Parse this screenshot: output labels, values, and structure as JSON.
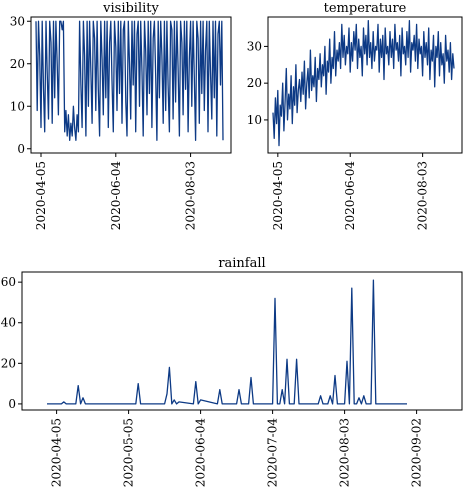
{
  "chart_data": [
    {
      "type": "line",
      "title": "visibility",
      "xlabel": "",
      "ylabel": "",
      "x_range": [
        "2020-04-01",
        "2020-08-29"
      ],
      "ylim": [
        -1,
        31
      ],
      "yticks": [
        0,
        10,
        20,
        30
      ],
      "yticklabels": [
        "0",
        "10",
        "20",
        "30"
      ],
      "xticks": [
        "2020-04-05",
        "2020-06-04",
        "2020-08-03"
      ],
      "xticklabels": [
        "2020-04-05",
        "2020-06-04",
        "2020-08-03"
      ],
      "grid": false,
      "color": "#0d3a85",
      "series": [
        {
          "x": [
            "2020-04-01",
            "2020-04-02",
            "2020-04-03",
            "2020-04-04",
            "2020-04-05",
            "2020-04-06",
            "2020-04-07",
            "2020-04-08",
            "2020-04-09",
            "2020-04-10",
            "2020-04-11",
            "2020-04-12",
            "2020-04-13",
            "2020-04-14",
            "2020-04-15",
            "2020-04-16",
            "2020-04-17",
            "2020-04-18",
            "2020-04-19",
            "2020-04-20",
            "2020-04-21",
            "2020-04-22",
            "2020-04-23",
            "2020-04-24",
            "2020-04-25",
            "2020-04-26",
            "2020-04-27",
            "2020-04-28",
            "2020-04-29",
            "2020-04-30",
            "2020-05-01",
            "2020-05-02",
            "2020-05-03",
            "2020-05-04",
            "2020-05-05",
            "2020-05-06",
            "2020-05-07",
            "2020-05-08",
            "2020-05-09",
            "2020-05-10",
            "2020-05-11",
            "2020-05-12",
            "2020-05-13",
            "2020-05-14",
            "2020-05-15",
            "2020-05-16",
            "2020-05-17",
            "2020-05-18",
            "2020-05-19",
            "2020-05-20",
            "2020-05-21",
            "2020-05-22",
            "2020-05-23",
            "2020-05-24",
            "2020-05-25",
            "2020-05-26",
            "2020-05-27",
            "2020-05-28",
            "2020-05-29",
            "2020-05-30",
            "2020-05-31",
            "2020-06-01",
            "2020-06-02",
            "2020-06-03",
            "2020-06-04",
            "2020-06-05",
            "2020-06-06",
            "2020-06-07",
            "2020-06-08",
            "2020-06-09",
            "2020-06-10",
            "2020-06-11",
            "2020-06-12",
            "2020-06-13",
            "2020-06-14",
            "2020-06-15",
            "2020-06-16",
            "2020-06-17",
            "2020-06-18",
            "2020-06-19",
            "2020-06-20",
            "2020-06-21",
            "2020-06-22",
            "2020-06-23",
            "2020-06-24",
            "2020-06-25",
            "2020-06-26",
            "2020-06-27",
            "2020-06-28",
            "2020-06-29",
            "2020-06-30",
            "2020-07-01",
            "2020-07-02",
            "2020-07-03",
            "2020-07-04",
            "2020-07-05",
            "2020-07-06",
            "2020-07-07",
            "2020-07-08",
            "2020-07-09",
            "2020-07-10",
            "2020-07-11",
            "2020-07-12",
            "2020-07-13",
            "2020-07-14",
            "2020-07-15",
            "2020-07-16",
            "2020-07-17",
            "2020-07-18",
            "2020-07-19",
            "2020-07-20",
            "2020-07-21",
            "2020-07-22",
            "2020-07-23",
            "2020-07-24",
            "2020-07-25",
            "2020-07-26",
            "2020-07-27",
            "2020-07-28",
            "2020-07-29",
            "2020-07-30",
            "2020-07-31",
            "2020-08-01",
            "2020-08-02",
            "2020-08-03",
            "2020-08-04",
            "2020-08-05",
            "2020-08-06",
            "2020-08-07",
            "2020-08-08",
            "2020-08-09",
            "2020-08-10",
            "2020-08-11",
            "2020-08-12",
            "2020-08-13",
            "2020-08-14",
            "2020-08-15",
            "2020-08-16",
            "2020-08-17",
            "2020-08-18",
            "2020-08-19",
            "2020-08-20",
            "2020-08-21",
            "2020-08-22",
            "2020-08-23",
            "2020-08-24",
            "2020-08-25",
            "2020-08-26",
            "2020-08-27",
            "2020-08-28",
            "2020-08-29"
          ],
          "values": [
            30,
            9,
            30,
            22,
            5,
            30,
            14,
            4,
            30,
            18,
            7,
            30,
            25,
            6,
            30,
            12,
            30,
            20,
            8,
            30,
            30,
            28,
            30,
            4,
            9,
            3,
            8,
            2,
            6,
            3,
            10,
            5,
            2,
            8,
            4,
            30,
            15,
            5,
            30,
            22,
            3,
            30,
            10,
            30,
            18,
            6,
            30,
            26,
            9,
            30,
            14,
            3,
            30,
            21,
            8,
            30,
            12,
            30,
            5,
            25,
            30,
            16,
            4,
            30,
            24,
            9,
            30,
            13,
            30,
            6,
            28,
            30,
            11,
            3,
            30,
            20,
            7,
            30,
            15,
            30,
            4,
            27,
            30,
            10,
            30,
            18,
            3,
            30,
            23,
            8,
            30,
            13,
            30,
            5,
            26,
            30,
            17,
            2,
            30,
            12,
            30,
            22,
            6,
            30,
            9,
            30,
            15,
            4,
            30,
            28,
            7,
            30,
            11,
            30,
            19,
            3,
            30,
            25,
            8,
            30,
            14,
            30,
            4,
            21,
            30,
            10,
            30,
            17,
            2,
            30,
            26,
            6,
            30,
            13,
            30,
            9,
            23,
            30,
            4,
            30,
            18,
            7,
            30,
            12,
            30,
            3,
            27,
            30,
            15,
            30,
            2
          ]
        }
      ]
    },
    {
      "type": "line",
      "title": "temperature",
      "xlabel": "",
      "ylabel": "",
      "x_range": [
        "2020-04-01",
        "2020-08-29"
      ],
      "ylim": [
        1,
        38
      ],
      "yticks": [
        10,
        20,
        30
      ],
      "yticklabels": [
        "10",
        "20",
        "30"
      ],
      "xticks": [
        "2020-04-05",
        "2020-06-04",
        "2020-08-03"
      ],
      "xticklabels": [
        "2020-04-05",
        "2020-06-04",
        "2020-08-03"
      ],
      "grid": false,
      "color": "#0d3a85",
      "series": [
        {
          "x": [
            "2020-04-01",
            "2020-04-02",
            "2020-04-03",
            "2020-04-04",
            "2020-04-05",
            "2020-04-06",
            "2020-04-07",
            "2020-04-08",
            "2020-04-09",
            "2020-04-10",
            "2020-04-11",
            "2020-04-12",
            "2020-04-13",
            "2020-04-14",
            "2020-04-15",
            "2020-04-16",
            "2020-04-17",
            "2020-04-18",
            "2020-04-19",
            "2020-04-20",
            "2020-04-21",
            "2020-04-22",
            "2020-04-23",
            "2020-04-24",
            "2020-04-25",
            "2020-04-26",
            "2020-04-27",
            "2020-04-28",
            "2020-04-29",
            "2020-04-30",
            "2020-05-01",
            "2020-05-02",
            "2020-05-03",
            "2020-05-04",
            "2020-05-05",
            "2020-05-06",
            "2020-05-07",
            "2020-05-08",
            "2020-05-09",
            "2020-05-10",
            "2020-05-11",
            "2020-05-12",
            "2020-05-13",
            "2020-05-14",
            "2020-05-15",
            "2020-05-16",
            "2020-05-17",
            "2020-05-18",
            "2020-05-19",
            "2020-05-20",
            "2020-05-21",
            "2020-05-22",
            "2020-05-23",
            "2020-05-24",
            "2020-05-25",
            "2020-05-26",
            "2020-05-27",
            "2020-05-28",
            "2020-05-29",
            "2020-05-30",
            "2020-05-31",
            "2020-06-01",
            "2020-06-02",
            "2020-06-03",
            "2020-06-04",
            "2020-06-05",
            "2020-06-06",
            "2020-06-07",
            "2020-06-08",
            "2020-06-09",
            "2020-06-10",
            "2020-06-11",
            "2020-06-12",
            "2020-06-13",
            "2020-06-14",
            "2020-06-15",
            "2020-06-16",
            "2020-06-17",
            "2020-06-18",
            "2020-06-19",
            "2020-06-20",
            "2020-06-21",
            "2020-06-22",
            "2020-06-23",
            "2020-06-24",
            "2020-06-25",
            "2020-06-26",
            "2020-06-27",
            "2020-06-28",
            "2020-06-29",
            "2020-06-30",
            "2020-07-01",
            "2020-07-02",
            "2020-07-03",
            "2020-07-04",
            "2020-07-05",
            "2020-07-06",
            "2020-07-07",
            "2020-07-08",
            "2020-07-09",
            "2020-07-10",
            "2020-07-11",
            "2020-07-12",
            "2020-07-13",
            "2020-07-14",
            "2020-07-15",
            "2020-07-16",
            "2020-07-17",
            "2020-07-18",
            "2020-07-19",
            "2020-07-20",
            "2020-07-21",
            "2020-07-22",
            "2020-07-23",
            "2020-07-24",
            "2020-07-25",
            "2020-07-26",
            "2020-07-27",
            "2020-07-28",
            "2020-07-29",
            "2020-07-30",
            "2020-07-31",
            "2020-08-01",
            "2020-08-02",
            "2020-08-03",
            "2020-08-04",
            "2020-08-05",
            "2020-08-06",
            "2020-08-07",
            "2020-08-08",
            "2020-08-09",
            "2020-08-10",
            "2020-08-11",
            "2020-08-12",
            "2020-08-13",
            "2020-08-14",
            "2020-08-15",
            "2020-08-16",
            "2020-08-17",
            "2020-08-18",
            "2020-08-19",
            "2020-08-20",
            "2020-08-21",
            "2020-08-22",
            "2020-08-23",
            "2020-08-24",
            "2020-08-25",
            "2020-08-26",
            "2020-08-27",
            "2020-08-28",
            "2020-08-29"
          ],
          "values": [
            12,
            5,
            16,
            9,
            18,
            3,
            14,
            11,
            20,
            7,
            15,
            24,
            10,
            17,
            13,
            22,
            9,
            19,
            14,
            25,
            12,
            18,
            21,
            15,
            23,
            17,
            26,
            13,
            20,
            24,
            16,
            29,
            18,
            22,
            19,
            27,
            15,
            24,
            21,
            28,
            19,
            25,
            22,
            30,
            17,
            26,
            23,
            32,
            20,
            27,
            24,
            34,
            22,
            29,
            26,
            31,
            24,
            36,
            27,
            33,
            25,
            30,
            28,
            35,
            23,
            31,
            26,
            34,
            29,
            36,
            24,
            32,
            27,
            30,
            22,
            35,
            28,
            33,
            25,
            37,
            27,
            31,
            24,
            34,
            26,
            30,
            29,
            36,
            23,
            32,
            27,
            33,
            21,
            35,
            28,
            30,
            25,
            34,
            27,
            32,
            24,
            36,
            29,
            31,
            26,
            33,
            22,
            35,
            28,
            30,
            25,
            34,
            27,
            37,
            23,
            31,
            29,
            33,
            26,
            36,
            24,
            32,
            28,
            30,
            22,
            34,
            27,
            31,
            25,
            35,
            21,
            29,
            26,
            33,
            19,
            30,
            27,
            34,
            22,
            31,
            25,
            28,
            20,
            33,
            26,
            29,
            23,
            31,
            21,
            28,
            24
          ]
        }
      ]
    },
    {
      "type": "line",
      "title": "rainfall",
      "xlabel": "",
      "ylabel": "",
      "x_range": [
        "2020-04-01",
        "2020-08-29"
      ],
      "ylim": [
        -3,
        65
      ],
      "yticks": [
        0,
        20,
        40,
        60
      ],
      "yticklabels": [
        "0",
        "20",
        "40",
        "60"
      ],
      "xticks": [
        "2020-04-05",
        "2020-05-05",
        "2020-06-04",
        "2020-07-04",
        "2020-08-03",
        "2020-09-02"
      ],
      "xticklabels": [
        "2020-04-05",
        "2020-05-05",
        "2020-06-04",
        "2020-07-04",
        "2020-08-03",
        "2020-09-02"
      ],
      "grid": false,
      "color": "#0d3a85",
      "series": [
        {
          "x": [
            "2020-04-01",
            "2020-04-07",
            "2020-04-08",
            "2020-04-09",
            "2020-04-13",
            "2020-04-14",
            "2020-04-15",
            "2020-04-16",
            "2020-04-17",
            "2020-05-08",
            "2020-05-09",
            "2020-05-10",
            "2020-05-20",
            "2020-05-21",
            "2020-05-22",
            "2020-05-23",
            "2020-05-24",
            "2020-05-25",
            "2020-05-26",
            "2020-06-01",
            "2020-06-02",
            "2020-06-03",
            "2020-06-04",
            "2020-06-11",
            "2020-06-12",
            "2020-06-13",
            "2020-06-19",
            "2020-06-20",
            "2020-06-21",
            "2020-06-24",
            "2020-06-25",
            "2020-06-26",
            "2020-07-03",
            "2020-07-04",
            "2020-07-05",
            "2020-07-06",
            "2020-07-07",
            "2020-07-08",
            "2020-07-09",
            "2020-07-10",
            "2020-07-11",
            "2020-07-12",
            "2020-07-13",
            "2020-07-14",
            "2020-07-15",
            "2020-07-16",
            "2020-07-17",
            "2020-07-23",
            "2020-07-24",
            "2020-07-25",
            "2020-07-27",
            "2020-07-28",
            "2020-07-29",
            "2020-07-30",
            "2020-07-31",
            "2020-08-01",
            "2020-08-03",
            "2020-08-04",
            "2020-08-05",
            "2020-08-06",
            "2020-08-07",
            "2020-08-08",
            "2020-08-09",
            "2020-08-10",
            "2020-08-11",
            "2020-08-12",
            "2020-08-13",
            "2020-08-14",
            "2020-08-15",
            "2020-08-16",
            "2020-08-17",
            "2020-08-18",
            "2020-08-19",
            "2020-08-20",
            "2020-08-21",
            "2020-08-22",
            "2020-08-23",
            "2020-08-24",
            "2020-08-25",
            "2020-08-26",
            "2020-08-27",
            "2020-08-28",
            "2020-08-29"
          ],
          "values": [
            0,
            0,
            1,
            0,
            0,
            9,
            0,
            3,
            0,
            0,
            10,
            0,
            0,
            5,
            18,
            0,
            2,
            0,
            1,
            0,
            11,
            0,
            2,
            0,
            7,
            0,
            0,
            7,
            0,
            0,
            13,
            0,
            0,
            0,
            52,
            0,
            0,
            7,
            0,
            22,
            0,
            0,
            0,
            22,
            0,
            0,
            0,
            0,
            4,
            0,
            0,
            4,
            0,
            14,
            0,
            0,
            0,
            21,
            0,
            57,
            0,
            0,
            3,
            0,
            4,
            0,
            0,
            0,
            61,
            0,
            0,
            0,
            0,
            0,
            0,
            0,
            0,
            0,
            0,
            0,
            0,
            0,
            0
          ]
        }
      ]
    }
  ]
}
